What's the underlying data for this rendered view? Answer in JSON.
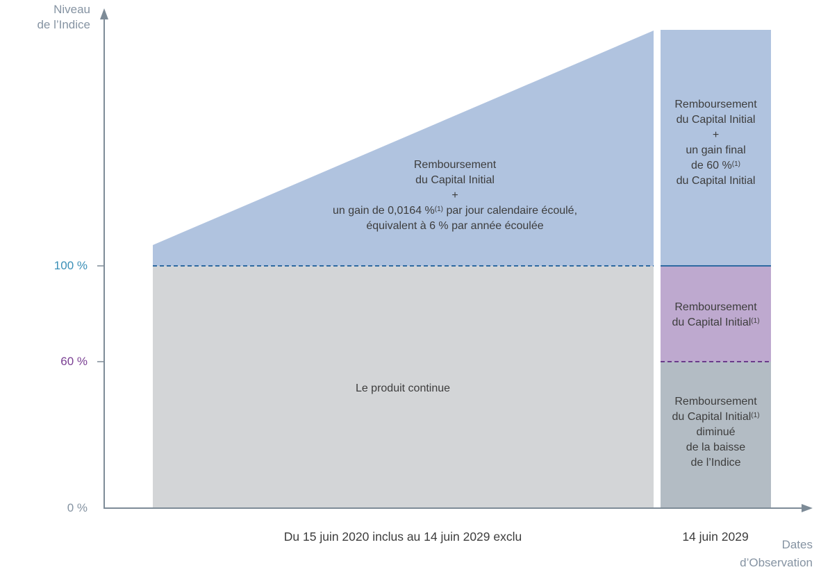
{
  "axes": {
    "y_title_line1": "Niveau",
    "y_title_line2": "de l’Indice",
    "x_title_line1": "Dates",
    "x_title_line2": "d’Observation",
    "ticks": [
      {
        "label": "100 %",
        "color": "#3a8fb7"
      },
      {
        "label": "60 %",
        "color": "#7a3f93"
      },
      {
        "label": "0 %",
        "color": "#8593a2"
      }
    ]
  },
  "periods": {
    "left_label": "Du 15 juin 2020 inclus au 14 juin 2029 exclu",
    "right_label": "14 juin 2029"
  },
  "zones": {
    "left_upper": {
      "line1": "Remboursement",
      "line2": "du Capital Initial",
      "line3": "+",
      "line4_pre": "un gain de 0,0164 %",
      "line4_sup": "(1)",
      "line4_post": " par jour calendaire écoulé,",
      "line5": "équivalent à 6 % par année écoulée"
    },
    "left_lower": {
      "line1": "Le produit continue"
    },
    "right_upper": {
      "line1": "Remboursement",
      "line2": "du Capital Initial",
      "line3": "+",
      "line4": "un gain final",
      "line5_pre": "de 60 %",
      "line5_sup": "(1)",
      "line6": "du Capital Initial"
    },
    "right_middle": {
      "line1": "Remboursement",
      "line2_pre": "du Capital Initial",
      "line2_sup": "(1)"
    },
    "right_lower": {
      "line1": "Remboursement",
      "line2_pre": "du Capital Initial",
      "line2_sup": "(1)",
      "line3": "diminué",
      "line4": "de la baisse",
      "line5": "de l’Indice"
    }
  },
  "colors": {
    "blue_zone": "#b0c3df",
    "grey_zone": "#d3d5d7",
    "purple_zone": "#bea9cf",
    "dark_grey_zone": "#b3bcc4",
    "axis": "#7d8b97",
    "line_100": "#2d6aa1",
    "line_60": "#6a3b8a"
  }
}
